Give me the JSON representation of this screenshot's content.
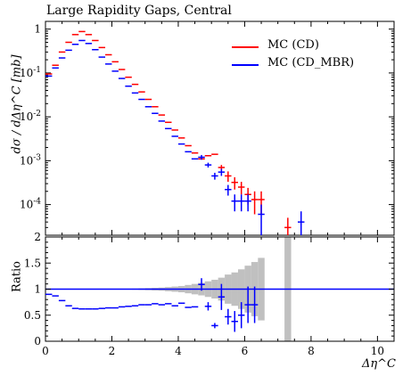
{
  "title": "Large Rapidity Gaps, Central",
  "main_ylabel": "dσ / dΔη^C [mb]",
  "ratio_ylabel": "Ratio",
  "xlabel": "Δη^C",
  "legend": [
    {
      "label": "MC (CD)",
      "color": "#ff0000"
    },
    {
      "label": "MC (CD_MBR)",
      "color": "#0000ff"
    }
  ],
  "chart_data": [
    {
      "type": "scatter",
      "panel": "main",
      "title": "Large Rapidity Gaps, Central",
      "xlabel": "Δη^C",
      "ylabel": "dσ / dΔη^C [mb]",
      "xlim": [
        0,
        10.5
      ],
      "ylim": [
        2e-05,
        1.5
      ],
      "yscale": "log",
      "x_ticks": [
        "0",
        "2",
        "4",
        "6",
        "8",
        "10"
      ],
      "y_ticks": [
        "10^-4",
        "10^-3",
        "10^-2",
        "10^-1",
        "1"
      ],
      "grid": false,
      "legend_position": "top-right",
      "series": [
        {
          "name": "MC (CD)",
          "color": "#ff0000",
          "points": [
            {
              "x": 0.1,
              "y": 0.095
            },
            {
              "x": 0.3,
              "y": 0.15
            },
            {
              "x": 0.5,
              "y": 0.3
            },
            {
              "x": 0.7,
              "y": 0.5
            },
            {
              "x": 0.9,
              "y": 0.75
            },
            {
              "x": 1.1,
              "y": 0.88
            },
            {
              "x": 1.3,
              "y": 0.75
            },
            {
              "x": 1.5,
              "y": 0.55
            },
            {
              "x": 1.7,
              "y": 0.38
            },
            {
              "x": 1.9,
              "y": 0.26
            },
            {
              "x": 2.1,
              "y": 0.18
            },
            {
              "x": 2.3,
              "y": 0.12
            },
            {
              "x": 2.5,
              "y": 0.08
            },
            {
              "x": 2.7,
              "y": 0.055
            },
            {
              "x": 2.9,
              "y": 0.037
            },
            {
              "x": 3.1,
              "y": 0.025
            },
            {
              "x": 3.3,
              "y": 0.017
            },
            {
              "x": 3.5,
              "y": 0.011
            },
            {
              "x": 3.7,
              "y": 0.0075
            },
            {
              "x": 3.9,
              "y": 0.005
            },
            {
              "x": 4.1,
              "y": 0.0033
            },
            {
              "x": 4.3,
              "y": 0.0022
            },
            {
              "x": 4.5,
              "y": 0.0015
            },
            {
              "x": 4.7,
              "y": 0.0011
            },
            {
              "x": 4.9,
              "y": 0.0013
            },
            {
              "x": 5.1,
              "y": 0.0014
            },
            {
              "x": 5.3,
              "y": 0.0007,
              "err": 0.0001
            },
            {
              "x": 5.5,
              "y": 0.00045,
              "err": 0.00012
            },
            {
              "x": 5.7,
              "y": 0.00032,
              "err": 0.0001
            },
            {
              "x": 5.9,
              "y": 0.00025,
              "err": 8e-05
            },
            {
              "x": 6.1,
              "y": 0.00017,
              "err": 7e-05
            },
            {
              "x": 6.3,
              "y": 0.00013,
              "err": 7e-05
            },
            {
              "x": 6.5,
              "y": 0.00013,
              "err": 7e-05
            },
            {
              "x": 7.3,
              "y": 3e-05,
              "err": 2e-05
            }
          ]
        },
        {
          "name": "MC (CD_MBR)",
          "color": "#0000ff",
          "points": [
            {
              "x": 0.1,
              "y": 0.085
            },
            {
              "x": 0.3,
              "y": 0.13
            },
            {
              "x": 0.5,
              "y": 0.22
            },
            {
              "x": 0.7,
              "y": 0.33
            },
            {
              "x": 0.9,
              "y": 0.45
            },
            {
              "x": 1.1,
              "y": 0.55
            },
            {
              "x": 1.3,
              "y": 0.47
            },
            {
              "x": 1.5,
              "y": 0.34
            },
            {
              "x": 1.7,
              "y": 0.23
            },
            {
              "x": 1.9,
              "y": 0.16
            },
            {
              "x": 2.1,
              "y": 0.11
            },
            {
              "x": 2.3,
              "y": 0.075
            },
            {
              "x": 2.5,
              "y": 0.05
            },
            {
              "x": 2.7,
              "y": 0.035
            },
            {
              "x": 2.9,
              "y": 0.025
            },
            {
              "x": 3.1,
              "y": 0.017
            },
            {
              "x": 3.3,
              "y": 0.012
            },
            {
              "x": 3.5,
              "y": 0.008
            },
            {
              "x": 3.7,
              "y": 0.0054
            },
            {
              "x": 3.9,
              "y": 0.0036
            },
            {
              "x": 4.1,
              "y": 0.0024
            },
            {
              "x": 4.3,
              "y": 0.0016
            },
            {
              "x": 4.5,
              "y": 0.0011
            },
            {
              "x": 4.7,
              "y": 0.0012,
              "err": 0.00015
            },
            {
              "x": 4.9,
              "y": 0.0008,
              "err": 0.0001
            },
            {
              "x": 5.1,
              "y": 0.00045,
              "err": 8e-05
            },
            {
              "x": 5.3,
              "y": 0.00055,
              "err": 0.0001
            },
            {
              "x": 5.5,
              "y": 0.00022,
              "err": 6e-05
            },
            {
              "x": 5.7,
              "y": 0.00012,
              "err": 5e-05
            },
            {
              "x": 5.9,
              "y": 0.00012,
              "err": 5e-05
            },
            {
              "x": 6.1,
              "y": 0.00012,
              "err": 5e-05
            },
            {
              "x": 6.5,
              "y": 6e-05,
              "err": 4e-05
            },
            {
              "x": 7.7,
              "y": 4e-05,
              "err": 3e-05
            }
          ]
        }
      ]
    },
    {
      "type": "scatter",
      "panel": "ratio",
      "xlabel": "Δη^C",
      "ylabel": "Ratio",
      "xlim": [
        0,
        10.5
      ],
      "ylim": [
        0,
        2
      ],
      "x_ticks": [
        "0",
        "2",
        "4",
        "6",
        "8",
        "10"
      ],
      "y_ticks": [
        "0",
        "0.5",
        "1",
        "1.5",
        "2"
      ],
      "reference_line": 1,
      "uncertainty_band": [
        {
          "x0": 2.6,
          "x1": 2.8,
          "lo": 0.99,
          "hi": 1.01
        },
        {
          "x0": 2.8,
          "x1": 3.0,
          "lo": 0.985,
          "hi": 1.015
        },
        {
          "x0": 3.0,
          "x1": 3.2,
          "lo": 0.98,
          "hi": 1.02
        },
        {
          "x0": 3.2,
          "x1": 3.4,
          "lo": 0.975,
          "hi": 1.025
        },
        {
          "x0": 3.4,
          "x1": 3.6,
          "lo": 0.97,
          "hi": 1.03
        },
        {
          "x0": 3.6,
          "x1": 3.8,
          "lo": 0.96,
          "hi": 1.04
        },
        {
          "x0": 3.8,
          "x1": 4.0,
          "lo": 0.95,
          "hi": 1.05
        },
        {
          "x0": 4.0,
          "x1": 4.2,
          "lo": 0.94,
          "hi": 1.06
        },
        {
          "x0": 4.2,
          "x1": 4.4,
          "lo": 0.92,
          "hi": 1.08
        },
        {
          "x0": 4.4,
          "x1": 4.6,
          "lo": 0.9,
          "hi": 1.1
        },
        {
          "x0": 4.6,
          "x1": 4.8,
          "lo": 0.88,
          "hi": 1.12
        },
        {
          "x0": 4.8,
          "x1": 5.0,
          "lo": 0.85,
          "hi": 1.15
        },
        {
          "x0": 5.0,
          "x1": 5.2,
          "lo": 0.82,
          "hi": 1.18
        },
        {
          "x0": 5.2,
          "x1": 5.4,
          "lo": 0.78,
          "hi": 1.22
        },
        {
          "x0": 5.4,
          "x1": 5.6,
          "lo": 0.72,
          "hi": 1.28
        },
        {
          "x0": 5.6,
          "x1": 5.8,
          "lo": 0.68,
          "hi": 1.32
        },
        {
          "x0": 5.8,
          "x1": 6.0,
          "lo": 0.62,
          "hi": 1.38
        },
        {
          "x0": 6.0,
          "x1": 6.2,
          "lo": 0.55,
          "hi": 1.45
        },
        {
          "x0": 6.2,
          "x1": 6.4,
          "lo": 0.48,
          "hi": 1.52
        },
        {
          "x0": 6.4,
          "x1": 6.6,
          "lo": 0.4,
          "hi": 1.6
        },
        {
          "x0": 7.2,
          "x1": 7.4,
          "lo": 0.0,
          "hi": 2.0
        }
      ],
      "series": [
        {
          "name": "MC (CD_MBR)",
          "color": "#0000ff",
          "points": [
            {
              "x": 0.1,
              "y": 0.9
            },
            {
              "x": 0.3,
              "y": 0.87
            },
            {
              "x": 0.5,
              "y": 0.78
            },
            {
              "x": 0.7,
              "y": 0.68
            },
            {
              "x": 0.9,
              "y": 0.63
            },
            {
              "x": 1.1,
              "y": 0.62
            },
            {
              "x": 1.3,
              "y": 0.62
            },
            {
              "x": 1.5,
              "y": 0.62
            },
            {
              "x": 1.7,
              "y": 0.63
            },
            {
              "x": 1.9,
              "y": 0.64
            },
            {
              "x": 2.1,
              "y": 0.64
            },
            {
              "x": 2.3,
              "y": 0.66
            },
            {
              "x": 2.5,
              "y": 0.67
            },
            {
              "x": 2.7,
              "y": 0.68
            },
            {
              "x": 2.9,
              "y": 0.7
            },
            {
              "x": 3.1,
              "y": 0.7
            },
            {
              "x": 3.3,
              "y": 0.72
            },
            {
              "x": 3.5,
              "y": 0.7
            },
            {
              "x": 3.7,
              "y": 0.72
            },
            {
              "x": 3.9,
              "y": 0.68
            },
            {
              "x": 4.1,
              "y": 0.73
            },
            {
              "x": 4.3,
              "y": 0.65
            },
            {
              "x": 4.5,
              "y": 0.66
            },
            {
              "x": 4.7,
              "y": 1.09,
              "err": 0.12
            },
            {
              "x": 4.9,
              "y": 0.67,
              "err": 0.08
            },
            {
              "x": 5.1,
              "y": 0.3,
              "err": 0.05
            },
            {
              "x": 5.3,
              "y": 0.85,
              "err": 0.25
            },
            {
              "x": 5.5,
              "y": 0.47,
              "err": 0.15
            },
            {
              "x": 5.7,
              "y": 0.38,
              "err": 0.2
            },
            {
              "x": 5.9,
              "y": 0.5,
              "err": 0.25
            },
            {
              "x": 6.1,
              "y": 0.7,
              "err": 0.35
            },
            {
              "x": 6.3,
              "y": 0.7,
              "err": 0.35
            }
          ]
        }
      ]
    }
  ]
}
